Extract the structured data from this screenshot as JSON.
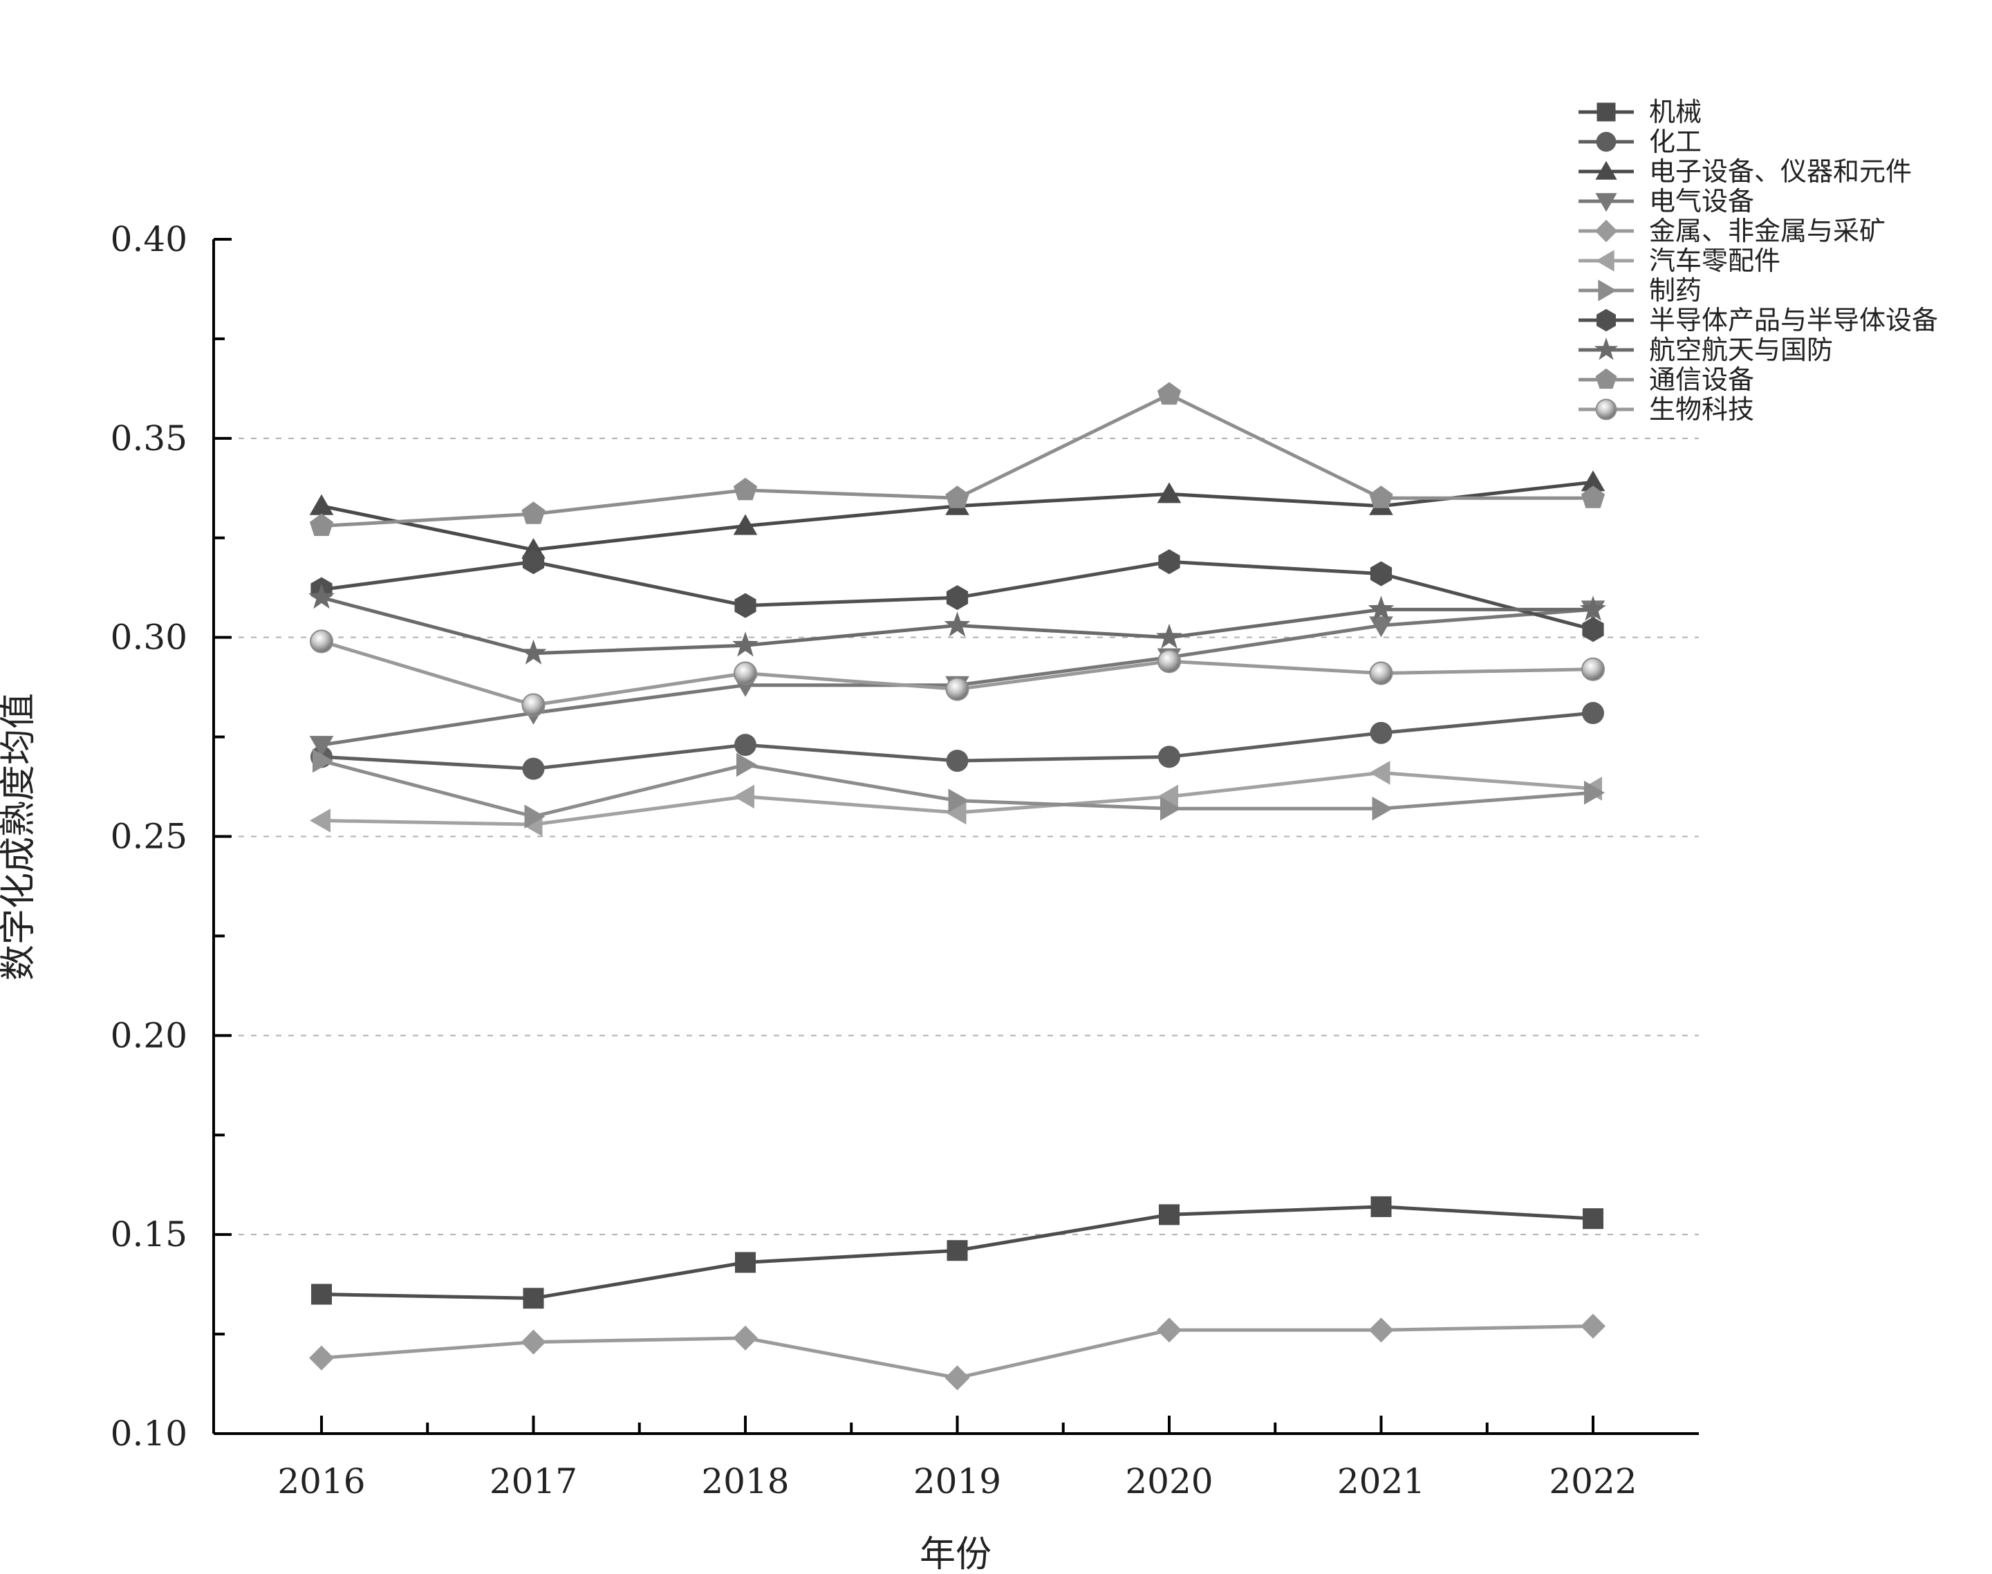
{
  "chart_data": {
    "type": "line",
    "title": "",
    "xlabel": "年份",
    "ylabel": "数字化成熟度均值",
    "categories": [
      "2016",
      "2017",
      "2018",
      "2019",
      "2020",
      "2021",
      "2022"
    ],
    "ylim": [
      0.1,
      0.4
    ],
    "yticks": [
      "0.10",
      "0.15",
      "0.20",
      "0.25",
      "0.30",
      "0.35",
      "0.40"
    ],
    "grid": "horizontal dashed",
    "legend_position": "top-right",
    "series": [
      {
        "name": "机械",
        "marker": "square",
        "color": "#4d4d4d",
        "values": [
          0.135,
          0.134,
          0.143,
          0.146,
          0.155,
          0.157,
          0.154
        ]
      },
      {
        "name": "化工",
        "marker": "circle",
        "color": "#5e5e5e",
        "values": [
          0.27,
          0.267,
          0.273,
          0.269,
          0.27,
          0.276,
          0.281
        ]
      },
      {
        "name": "电子设备、仪器和元件",
        "marker": "triangle-up",
        "color": "#4a4a4a",
        "values": [
          0.333,
          0.322,
          0.328,
          0.333,
          0.336,
          0.333,
          0.339
        ]
      },
      {
        "name": "电气设备",
        "marker": "triangle-down",
        "color": "#777777",
        "values": [
          0.273,
          0.281,
          0.288,
          0.288,
          0.295,
          0.303,
          0.307
        ]
      },
      {
        "name": "金属、非金属与采矿",
        "marker": "diamond",
        "color": "#9a9a9a",
        "values": [
          0.119,
          0.123,
          0.124,
          0.114,
          0.126,
          0.126,
          0.127
        ]
      },
      {
        "name": "汽车零配件",
        "marker": "triangle-left",
        "color": "#a2a2a2",
        "values": [
          0.254,
          0.253,
          0.26,
          0.256,
          0.26,
          0.266,
          0.262
        ]
      },
      {
        "name": "制药",
        "marker": "triangle-right",
        "color": "#8c8c8c",
        "values": [
          0.269,
          0.255,
          0.268,
          0.259,
          0.257,
          0.257,
          0.261
        ]
      },
      {
        "name": "半导体产品与半导体设备",
        "marker": "hexagon",
        "color": "#505050",
        "values": [
          0.312,
          0.319,
          0.308,
          0.31,
          0.319,
          0.316,
          0.302
        ]
      },
      {
        "name": "航空航天与国防",
        "marker": "star",
        "color": "#6a6a6a",
        "values": [
          0.31,
          0.296,
          0.298,
          0.303,
          0.3,
          0.307,
          0.307
        ]
      },
      {
        "name": "通信设备",
        "marker": "pentagon",
        "color": "#8e8e8e",
        "values": [
          0.328,
          0.331,
          0.337,
          0.335,
          0.361,
          0.335,
          0.335
        ]
      },
      {
        "name": "生物科技",
        "marker": "sphere",
        "color": "#999999",
        "values": [
          0.299,
          0.283,
          0.291,
          0.287,
          0.294,
          0.291,
          0.292
        ]
      }
    ]
  }
}
